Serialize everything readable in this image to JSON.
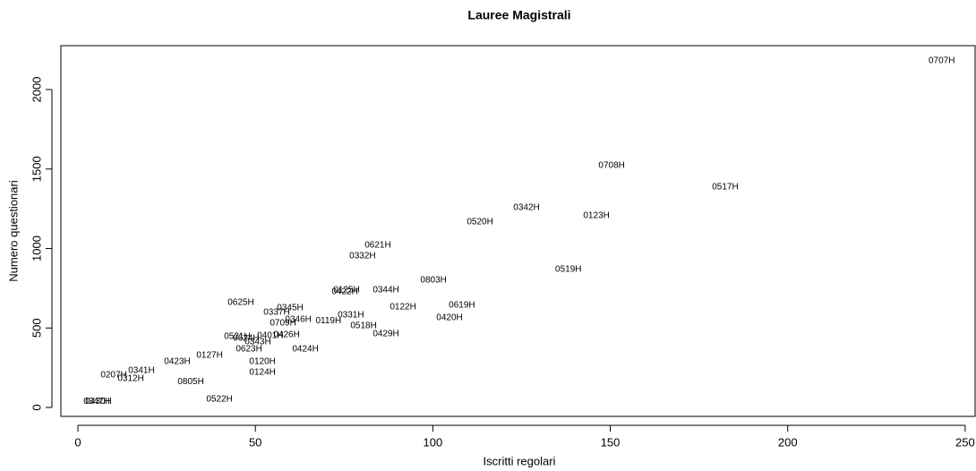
{
  "chart_data": {
    "type": "scatter",
    "title": "Lauree Magistrali",
    "xlabel": "Iscritti regolari",
    "ylabel": "Numero questionari",
    "labels": [
      "0707H",
      "0708H",
      "0517H",
      "0342H",
      "0123H",
      "0520H",
      "0621H",
      "0332H",
      "0519H",
      "0803H",
      "0125H",
      "0422H",
      "0344H",
      "0625H",
      "0619H",
      "0122H",
      "0345H",
      "0337H",
      "0331H",
      "0420H",
      "0346H",
      "0119H",
      "0709H",
      "0518H",
      "0429H",
      "0426H",
      "0521H",
      "0401H",
      "0624H",
      "0343H",
      "0623H",
      "0424H",
      "0423H",
      "0127H",
      "0120H",
      "0124H",
      "0341H",
      "0207H",
      "0312H",
      "0805H",
      "0522H",
      "0347H",
      "0430H"
    ],
    "x": [
      243.4,
      150.4,
      182.4,
      126.4,
      146.1,
      113.3,
      84.5,
      80.2,
      138.2,
      100.2,
      75.7,
      75.2,
      86.8,
      45.9,
      108.2,
      91.6,
      59.8,
      56,
      76.9,
      104.7,
      62.1,
      70.6,
      57.8,
      80.5,
      86.8,
      58.8,
      44.9,
      54.2,
      47.4,
      50.7,
      48.2,
      64.1,
      28,
      37.1,
      52,
      52,
      17.9,
      10.1,
      14.9,
      31.8,
      39.9,
      5.3,
      5.8
    ],
    "values": [
      2180,
      1521,
      1386,
      1256,
      1206,
      1166,
      1020,
      952,
      868,
      800,
      738,
      727,
      738,
      659,
      642,
      631,
      625,
      597,
      580,
      563,
      552,
      546,
      530,
      513,
      462,
      456,
      445,
      451,
      434,
      411,
      366,
      366,
      287,
      327,
      287,
      220,
      231,
      203,
      180,
      163,
      51,
      39,
      39
    ],
    "xlim": [
      -4.8,
      252.8
    ],
    "ylim": [
      -56,
      2276
    ],
    "xticks": [
      0,
      50,
      100,
      150,
      200,
      250
    ],
    "yticks": [
      0,
      500,
      1000,
      1500,
      2000
    ]
  }
}
